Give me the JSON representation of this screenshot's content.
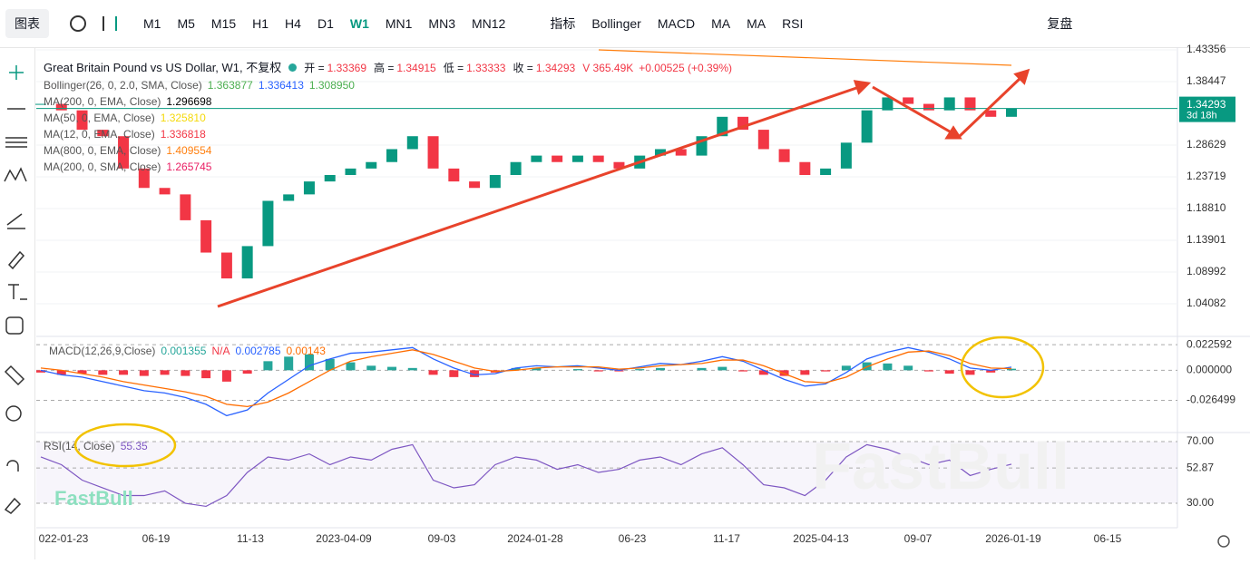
{
  "toolbar": {
    "menu": "图表",
    "timeframes": [
      "M1",
      "M5",
      "M15",
      "H1",
      "H4",
      "D1",
      "W1",
      "MN1",
      "MN3",
      "MN12"
    ],
    "active": 6,
    "indicators": "指标",
    "studies": [
      "Bollinger",
      "MACD",
      "MA",
      "MA",
      "RSI"
    ],
    "replay": "复盘"
  },
  "legend": {
    "symbol": "Great Britain Pound vs US Dollar, W1, 不复权",
    "open_label": "开 =",
    "open": "1.33369",
    "high_label": "高 =",
    "high": "1.34915",
    "low_label": "低 =",
    "low": "1.33333",
    "close_label": "收 =",
    "close": "1.34293",
    "volume": "V 365.49K",
    "change": "+0.00525 (+0.39%)",
    "indicators": [
      {
        "name": "Bollinger(26, 0, 2.0, SMA, Close)",
        "values": [
          "1.363877",
          "1.336413",
          "1.308950"
        ],
        "colors": [
          "#4caf50",
          "#2962ff",
          "#4caf50"
        ]
      },
      {
        "name": "MA(200, 0, EMA, Close)",
        "values": [
          "1.296698"
        ],
        "colors": [
          "#000000"
        ]
      },
      {
        "name": "MA(50, 0, EMA, Close)",
        "values": [
          "1.325810"
        ],
        "colors": [
          "#f5d90a"
        ]
      },
      {
        "name": "MA(12, 0, EMA, Close)",
        "values": [
          "1.336818"
        ],
        "colors": [
          "#f23645"
        ]
      },
      {
        "name": "MA(800, 0, EMA, Close)",
        "values": [
          "1.409554"
        ],
        "colors": [
          "#ff7f0e"
        ]
      },
      {
        "name": "MA(200, 0, SMA, Close)",
        "values": [
          "1.265745"
        ],
        "colors": [
          "#e91e63"
        ]
      }
    ]
  },
  "watermark": "FastBull",
  "countdown": "3d 18h",
  "chart_data": [
    {
      "type": "candlestick",
      "values": [
        1.35,
        1.34,
        1.31,
        1.3,
        1.25,
        1.22,
        1.21,
        1.17,
        1.12,
        1.08,
        1.13,
        1.2,
        1.21,
        1.23,
        1.24,
        1.25,
        1.26,
        1.28,
        1.3,
        1.25,
        1.23,
        1.22,
        1.24,
        1.26,
        1.27,
        1.26,
        1.27,
        1.26,
        1.25,
        1.27,
        1.28,
        1.27,
        1.3,
        1.33,
        1.31,
        1.28,
        1.26,
        1.24,
        1.25,
        1.29,
        1.34,
        1.36,
        1.35,
        1.34,
        1.36,
        1.34,
        1.33,
        1.34293
      ],
      "up_color": "#089981",
      "down_color": "#f23645",
      "ylim": [
        0.99173,
        1.43775
      ],
      "yticks": [
        1.43356,
        1.38447,
        1.28629,
        1.23719,
        {
          "value": 1.1881,
          "label": "1.18810"
        },
        1.13901,
        1.08992,
        1.04082
      ],
      "x_labels": [
        "022-01-23",
        "06-19",
        "11-13",
        "2023-04-09",
        "09-03",
        "2024-01-28",
        "06-23",
        "11-17",
        "2025-04-13",
        "09-07",
        "2026-01-19",
        "06-15"
      ]
    },
    {
      "type": "macd",
      "title": "MACD(12,26,9,Close)",
      "na": "N/A",
      "ylim": [
        -0.05407,
        0.02905
      ],
      "yticks": [
        0.022592,
        {
          "value": 0,
          "label": "0.000000"
        },
        -0.026499
      ],
      "series": [
        {
          "color": "#26a69a",
          "values": [
            -0.002,
            -0.004,
            -0.003,
            -0.004,
            -0.004,
            -0.005,
            -0.004,
            -0.005,
            -0.007,
            -0.01,
            -0.003,
            0.008,
            0.012,
            0.014,
            0.01,
            0.007,
            0.004,
            0.003,
            0.002,
            -0.004,
            -0.006,
            -0.006,
            -0.002,
            0.002,
            0.002,
            0.0,
            0.001,
            -0.001,
            -0.001,
            0.001,
            0.002,
            0.0,
            0.002,
            0.003,
            -0.001,
            -0.004,
            -0.005,
            -0.004,
            -0.001,
            0.004,
            0.007,
            0.006,
            0.004,
            -0.001,
            -0.003,
            -0.004,
            -0.002,
            0.001355
          ],
          "down_color": "#f23645"
        },
        {
          "color": "#2962ff",
          "values": [
            0.0,
            -0.004,
            -0.006,
            -0.01,
            -0.014,
            -0.018,
            -0.02,
            -0.024,
            -0.03,
            -0.04,
            -0.035,
            -0.02,
            -0.008,
            0.004,
            0.01,
            0.015,
            0.016,
            0.018,
            0.02,
            0.01,
            0.002,
            -0.004,
            -0.003,
            0.002,
            0.004,
            0.003,
            0.004,
            0.002,
            0.0,
            0.003,
            0.006,
            0.005,
            0.008,
            0.012,
            0.008,
            0.0,
            -0.008,
            -0.014,
            -0.012,
            -0.002,
            0.01,
            0.016,
            0.02,
            0.016,
            0.01,
            0.002,
            0.0,
            0.002785
          ]
        },
        {
          "color": "#ff6d00",
          "values": [
            0.002,
            0.0,
            -0.003,
            -0.006,
            -0.01,
            -0.013,
            -0.016,
            -0.019,
            -0.023,
            -0.03,
            -0.032,
            -0.028,
            -0.02,
            -0.01,
            0.0,
            0.008,
            0.012,
            0.015,
            0.018,
            0.014,
            0.008,
            0.002,
            -0.001,
            0.0,
            0.002,
            0.003,
            0.003,
            0.003,
            0.001,
            0.002,
            0.004,
            0.005,
            0.006,
            0.009,
            0.009,
            0.004,
            -0.003,
            -0.01,
            -0.011,
            -0.006,
            0.003,
            0.01,
            0.016,
            0.017,
            0.013,
            0.006,
            0.002,
            0.00143
          ]
        }
      ]
    },
    {
      "type": "rsi",
      "title": "RSI(14, Close)",
      "color": "#7e57c2",
      "ylim": [
        16.5,
        74.1
      ],
      "yticks": [
        {
          "value": 70,
          "label": "70.00"
        },
        52.87,
        {
          "value": 30,
          "label": "30.00"
        }
      ],
      "values": [
        60,
        55,
        45,
        40,
        35,
        35,
        38,
        30,
        28,
        35,
        50,
        60,
        58,
        62,
        55,
        60,
        58,
        65,
        68,
        45,
        40,
        42,
        55,
        60,
        58,
        52,
        55,
        50,
        52,
        58,
        60,
        55,
        62,
        66,
        55,
        42,
        40,
        35,
        45,
        60,
        68,
        65,
        60,
        55,
        58,
        48,
        52,
        55.35
      ]
    }
  ]
}
